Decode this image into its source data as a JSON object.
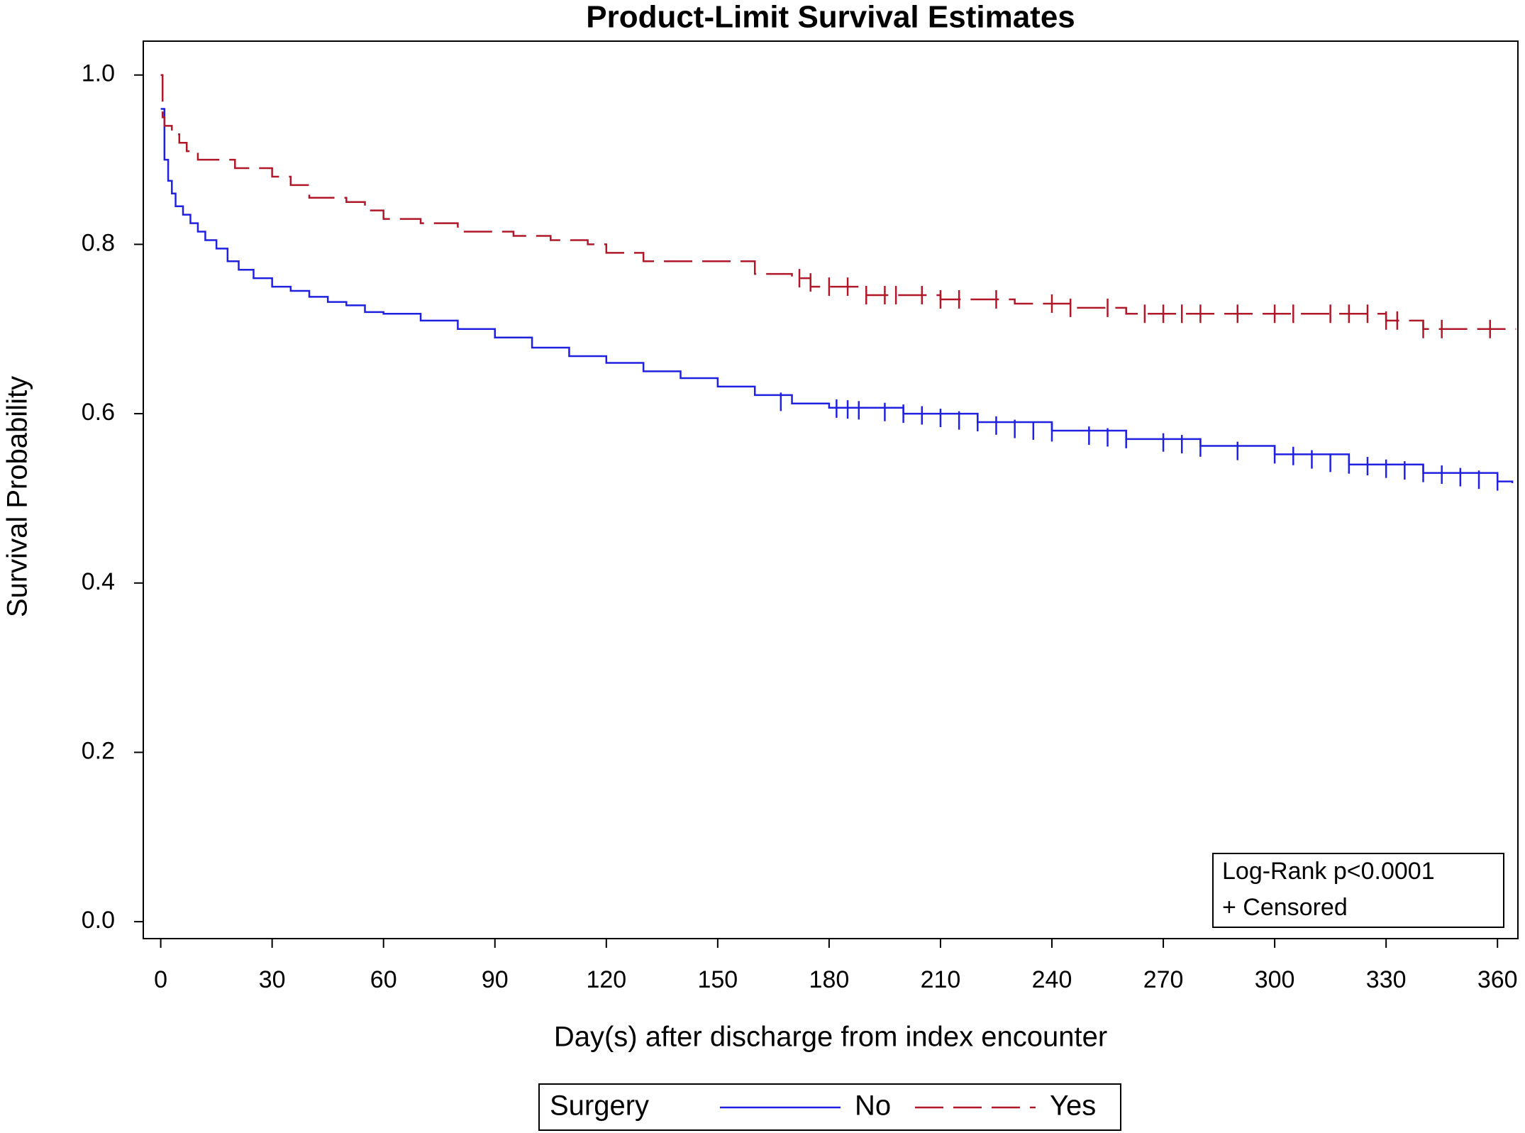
{
  "chart_data": {
    "type": "step",
    "title": "Product-Limit Survival Estimates",
    "x_label": "Day(s) after discharge from index encounter",
    "y_label": "Survival Probability",
    "legend_title": "Surgery",
    "annotations": [
      "Log-Rank p<0.0001",
      "+ Censored"
    ],
    "xlim": [
      -4.7,
      365.5
    ],
    "xticks": [
      0,
      30,
      60,
      90,
      120,
      150,
      180,
      210,
      240,
      270,
      300,
      330,
      360
    ],
    "ylim": [
      -0.02,
      1.04
    ],
    "yticks": [
      {
        "value": 0,
        "label": "0.0"
      },
      0.2,
      0.4,
      0.6,
      0.8,
      {
        "value": 1,
        "label": "1.0"
      }
    ],
    "series": [
      {
        "name": "No",
        "color": "#2020e0",
        "dash": false,
        "x": [
          0,
          1,
          2,
          3,
          4,
          6,
          8,
          10,
          12,
          15,
          18,
          21,
          25,
          30,
          35,
          40,
          45,
          50,
          55,
          60,
          70,
          80,
          90,
          100,
          110,
          120,
          130,
          140,
          150,
          160,
          170,
          180,
          200,
          220,
          240,
          260,
          280,
          300,
          320,
          340,
          360,
          364
        ],
        "values": [
          0.96,
          0.9,
          0.875,
          0.86,
          0.845,
          0.835,
          0.825,
          0.815,
          0.805,
          0.795,
          0.78,
          0.77,
          0.76,
          0.75,
          0.745,
          0.738,
          0.732,
          0.728,
          0.72,
          0.718,
          0.71,
          0.7,
          0.69,
          0.678,
          0.668,
          0.66,
          0.65,
          0.642,
          0.632,
          0.622,
          0.612,
          0.607,
          0.6,
          0.59,
          0.58,
          0.57,
          0.562,
          0.552,
          0.54,
          0.53,
          0.52,
          0.518
        ],
        "censored_x": [
          167,
          182,
          185,
          188,
          195,
          200,
          205,
          210,
          215,
          220,
          225,
          230,
          235,
          240,
          250,
          255,
          260,
          270,
          275,
          280,
          290,
          300,
          305,
          310,
          315,
          320,
          325,
          330,
          335,
          340,
          345,
          350,
          355,
          360
        ],
        "censored_values": [
          0.614,
          0.606,
          0.605,
          0.604,
          0.602,
          0.6,
          0.598,
          0.595,
          0.592,
          0.59,
          0.586,
          0.582,
          0.58,
          0.578,
          0.574,
          0.572,
          0.57,
          0.566,
          0.564,
          0.56,
          0.556,
          0.552,
          0.55,
          0.546,
          0.542,
          0.54,
          0.538,
          0.535,
          0.533,
          0.53,
          0.528,
          0.525,
          0.522,
          0.52
        ]
      },
      {
        "name": "Yes",
        "color": "#b0182a",
        "dash": true,
        "x": [
          0,
          0.5,
          1,
          3,
          5,
          7,
          10,
          20,
          30,
          35,
          40,
          50,
          55,
          60,
          70,
          80,
          95,
          105,
          115,
          120,
          130,
          160,
          170,
          175,
          190,
          210,
          230,
          245,
          260,
          330,
          340,
          365
        ],
        "values": [
          1.0,
          0.95,
          0.94,
          0.93,
          0.92,
          0.91,
          0.9,
          0.89,
          0.88,
          0.87,
          0.855,
          0.85,
          0.84,
          0.83,
          0.825,
          0.815,
          0.81,
          0.805,
          0.8,
          0.79,
          0.78,
          0.765,
          0.76,
          0.75,
          0.74,
          0.735,
          0.73,
          0.725,
          0.718,
          0.71,
          0.7,
          0.7
        ],
        "censored_x": [
          172,
          175,
          180,
          185,
          190,
          195,
          198,
          205,
          210,
          215,
          225,
          240,
          245,
          255,
          265,
          270,
          275,
          280,
          290,
          300,
          305,
          315,
          320,
          325,
          330,
          333,
          340,
          345,
          358
        ],
        "censored_values": [
          0.76,
          0.755,
          0.75,
          0.75,
          0.74,
          0.74,
          0.74,
          0.74,
          0.735,
          0.735,
          0.735,
          0.73,
          0.725,
          0.725,
          0.718,
          0.718,
          0.718,
          0.718,
          0.718,
          0.718,
          0.718,
          0.718,
          0.718,
          0.718,
          0.71,
          0.71,
          0.7,
          0.7,
          0.7
        ]
      }
    ]
  }
}
